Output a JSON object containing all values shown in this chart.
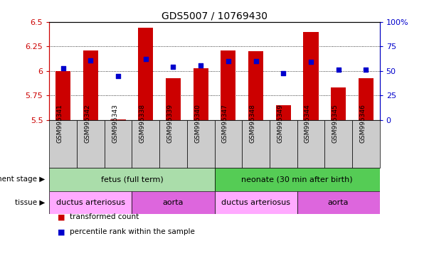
{
  "title": "GDS5007 / 10769430",
  "samples": [
    "GSM995341",
    "GSM995342",
    "GSM995343",
    "GSM995338",
    "GSM995339",
    "GSM995340",
    "GSM995347",
    "GSM995348",
    "GSM995349",
    "GSM995344",
    "GSM995345",
    "GSM995346"
  ],
  "red_values": [
    6.0,
    6.21,
    5.51,
    6.44,
    5.93,
    6.03,
    6.21,
    6.2,
    5.65,
    6.4,
    5.83,
    5.93
  ],
  "blue_values": [
    53,
    61,
    45,
    62,
    54,
    56,
    60,
    60,
    48,
    59,
    51,
    51
  ],
  "ylim_left": [
    5.5,
    6.5
  ],
  "ylim_right": [
    0,
    100
  ],
  "yticks_left": [
    5.5,
    5.75,
    6.0,
    6.25,
    6.5
  ],
  "yticks_right": [
    0,
    25,
    50,
    75,
    100
  ],
  "ytick_labels_left": [
    "5.5",
    "5.75",
    "6",
    "6.25",
    "6.5"
  ],
  "ytick_labels_right": [
    "0",
    "25",
    "50",
    "75",
    "100%"
  ],
  "grid_values": [
    5.75,
    6.0,
    6.25
  ],
  "bar_color": "#cc0000",
  "dot_color": "#0000cc",
  "bar_width": 0.55,
  "development_stage_groups": [
    {
      "label": "fetus (full term)",
      "start": 0,
      "end": 6,
      "color": "#aaddaa"
    },
    {
      "label": "neonate (30 min after birth)",
      "start": 6,
      "end": 12,
      "color": "#55cc55"
    }
  ],
  "tissue_groups": [
    {
      "label": "ductus arteriosus",
      "start": 0,
      "end": 3,
      "color": "#ffaaff"
    },
    {
      "label": "aorta",
      "start": 3,
      "end": 6,
      "color": "#dd66dd"
    },
    {
      "label": "ductus arteriosus",
      "start": 6,
      "end": 9,
      "color": "#ffaaff"
    },
    {
      "label": "aorta",
      "start": 9,
      "end": 12,
      "color": "#dd66dd"
    }
  ],
  "legend_items": [
    {
      "label": "transformed count",
      "color": "#cc0000"
    },
    {
      "label": "percentile rank within the sample",
      "color": "#0000cc"
    }
  ],
  "tick_color_left": "#cc0000",
  "tick_color_right": "#0000cc",
  "dev_stage_label": "development stage",
  "tissue_label": "tissue",
  "xticklabel_bg": "#cccccc"
}
